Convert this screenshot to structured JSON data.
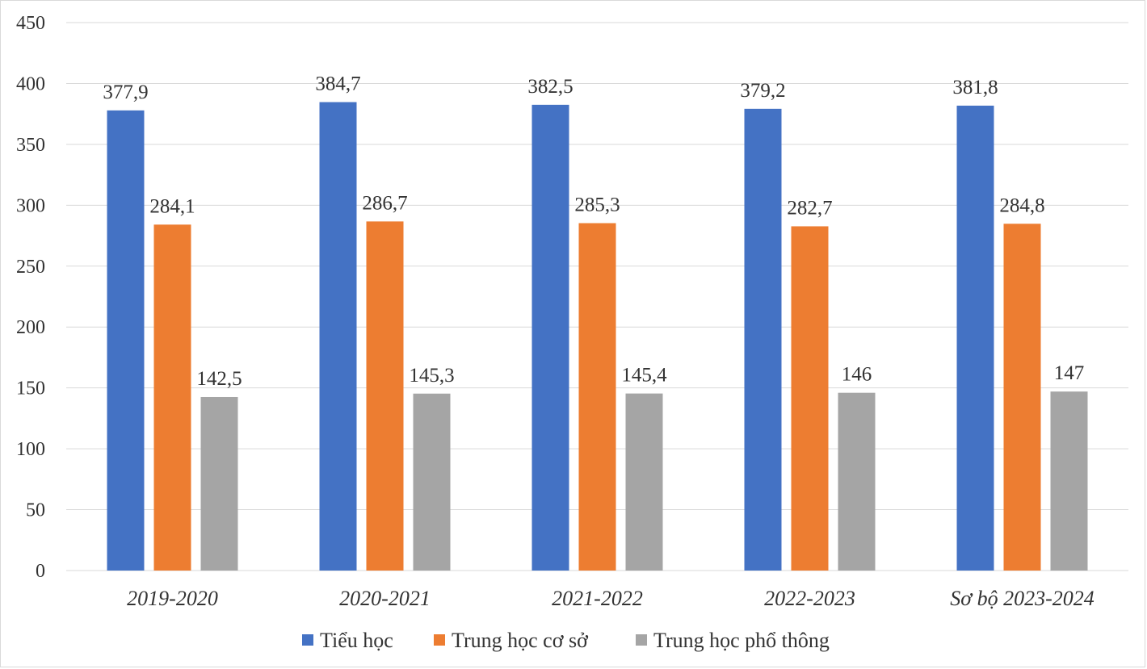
{
  "chart_data": {
    "type": "bar",
    "title": "",
    "xlabel": "",
    "ylabel": "",
    "ylim": [
      0,
      450
    ],
    "yticks": [
      "0",
      "50",
      "100",
      "150",
      "200",
      "250",
      "300",
      "350",
      "400",
      "450"
    ],
    "ytick_values": [
      0,
      50,
      100,
      150,
      200,
      250,
      300,
      350,
      400,
      450
    ],
    "grid": true,
    "legend_position": "bottom",
    "categories": [
      "2019-2020",
      "2020-2021",
      "2021-2022",
      "2022-2023",
      "Sơ bộ 2023-2024"
    ],
    "series": [
      {
        "name": "Tiểu học",
        "color": "#4472C4",
        "values": [
          377.9,
          384.7,
          382.5,
          379.2,
          381.8
        ],
        "labels": [
          "377,9",
          "384,7",
          "382,5",
          "379,2",
          "381,8"
        ]
      },
      {
        "name": "Trung học cơ sở",
        "color": "#ED7D31",
        "values": [
          284.1,
          286.7,
          285.3,
          282.7,
          284.8
        ],
        "labels": [
          "284,1",
          "286,7",
          "285,3",
          "282,7",
          "284,8"
        ]
      },
      {
        "name": "Trung học phổ thông",
        "color": "#A5A5A5",
        "values": [
          142.5,
          145.3,
          145.4,
          146,
          147
        ],
        "labels": [
          "142,5",
          "145,3",
          "145,4",
          "146",
          "147"
        ]
      }
    ]
  }
}
